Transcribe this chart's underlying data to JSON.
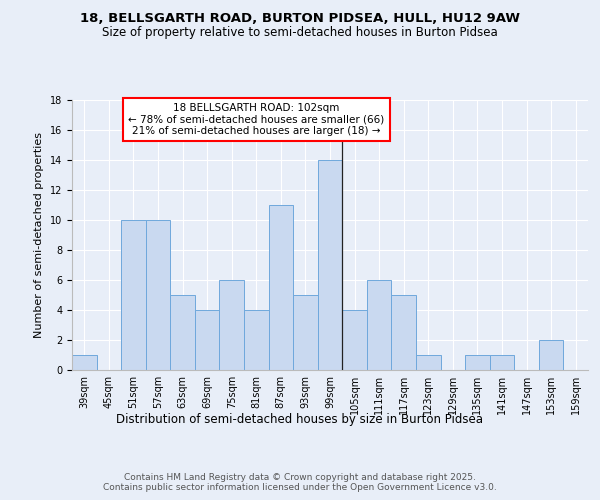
{
  "title_line1": "18, BELLSGARTH ROAD, BURTON PIDSEA, HULL, HU12 9AW",
  "title_line2": "Size of property relative to semi-detached houses in Burton Pidsea",
  "xlabel": "Distribution of semi-detached houses by size in Burton Pidsea",
  "ylabel": "Number of semi-detached properties",
  "categories": [
    "39sqm",
    "45sqm",
    "51sqm",
    "57sqm",
    "63sqm",
    "69sqm",
    "75sqm",
    "81sqm",
    "87sqm",
    "93sqm",
    "99sqm",
    "105sqm",
    "111sqm",
    "117sqm",
    "123sqm",
    "129sqm",
    "135sqm",
    "141sqm",
    "147sqm",
    "153sqm",
    "159sqm"
  ],
  "values": [
    1,
    0,
    10,
    10,
    5,
    4,
    6,
    4,
    11,
    5,
    14,
    4,
    6,
    5,
    1,
    0,
    1,
    1,
    0,
    2,
    0
  ],
  "bar_color": "#c9d9f0",
  "bar_edge_color": "#6fa8dc",
  "annotation_text": "18 BELLSGARTH ROAD: 102sqm\n← 78% of semi-detached houses are smaller (66)\n21% of semi-detached houses are larger (18) →",
  "annotation_box_color": "white",
  "annotation_box_edge_color": "red",
  "background_color": "#e8eef8",
  "plot_bg_color": "#e8eef8",
  "ylim": [
    0,
    18
  ],
  "yticks": [
    0,
    2,
    4,
    6,
    8,
    10,
    12,
    14,
    16,
    18
  ],
  "footer_text": "Contains HM Land Registry data © Crown copyright and database right 2025.\nContains public sector information licensed under the Open Government Licence v3.0.",
  "grid_color": "white",
  "title_fontsize": 9.5,
  "subtitle_fontsize": 8.5,
  "ylabel_fontsize": 8,
  "xlabel_fontsize": 8.5,
  "tick_fontsize": 7,
  "annotation_fontsize": 7.5,
  "footer_fontsize": 6.5
}
